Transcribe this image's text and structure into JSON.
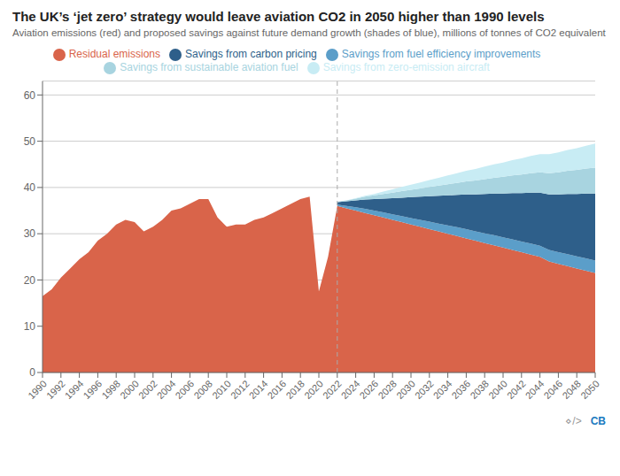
{
  "chart_data": {
    "type": "area",
    "title": "The UK’s ‘jet zero’ strategy would leave aviation CO2 in 2050 higher than 1990 levels",
    "subtitle": "Aviation emissions (red) and proposed savings against future demand growth (shades of blue), millions of tonnes of CO2 equivalent",
    "x": [
      1990,
      1991,
      1992,
      1993,
      1994,
      1995,
      1996,
      1997,
      1998,
      1999,
      2000,
      2001,
      2002,
      2003,
      2004,
      2005,
      2006,
      2007,
      2008,
      2009,
      2010,
      2011,
      2012,
      2013,
      2014,
      2015,
      2016,
      2017,
      2018,
      2019,
      2020,
      2021,
      2022,
      2023,
      2024,
      2025,
      2026,
      2027,
      2028,
      2029,
      2030,
      2031,
      2032,
      2033,
      2034,
      2035,
      2036,
      2037,
      2038,
      2039,
      2040,
      2041,
      2042,
      2043,
      2044,
      2045,
      2046,
      2047,
      2048,
      2049,
      2050
    ],
    "series": [
      {
        "name": "Residual emissions",
        "color": "#d9644a",
        "values": [
          16.5,
          18.0,
          20.5,
          22.5,
          24.5,
          26.0,
          28.5,
          30.0,
          32.0,
          33.0,
          32.5,
          30.5,
          31.5,
          33.0,
          35.0,
          35.5,
          36.5,
          37.5,
          37.5,
          33.5,
          31.5,
          32.0,
          32.0,
          33.0,
          33.5,
          34.5,
          35.5,
          36.5,
          37.5,
          38.0,
          17.5,
          25.0,
          36.0,
          35.5,
          35.0,
          34.5,
          34.0,
          33.5,
          33.0,
          32.5,
          32.0,
          31.5,
          31.0,
          30.5,
          30.0,
          29.5,
          29.0,
          28.5,
          28.0,
          27.5,
          27.0,
          26.5,
          26.0,
          25.5,
          25.0,
          24.0,
          23.5,
          23.0,
          22.5,
          22.0,
          21.5
        ]
      },
      {
        "name": "Savings from fuel efficiency improvements",
        "color": "#5b9ec9",
        "values": [
          null,
          null,
          null,
          null,
          null,
          null,
          null,
          null,
          null,
          null,
          null,
          null,
          null,
          null,
          null,
          null,
          null,
          null,
          null,
          null,
          null,
          null,
          null,
          null,
          null,
          null,
          null,
          null,
          null,
          null,
          null,
          null,
          0.3,
          0.5,
          0.7,
          0.9,
          1.0,
          1.1,
          1.2,
          1.3,
          1.4,
          1.5,
          1.6,
          1.7,
          1.8,
          1.9,
          2.0,
          2.0,
          2.1,
          2.2,
          2.2,
          2.3,
          2.3,
          2.4,
          2.4,
          2.5,
          2.5,
          2.6,
          2.6,
          2.7,
          2.7
        ]
      },
      {
        "name": "Savings from carbon pricing",
        "color": "#2e5f8a",
        "values": [
          null,
          null,
          null,
          null,
          null,
          null,
          null,
          null,
          null,
          null,
          null,
          null,
          null,
          null,
          null,
          null,
          null,
          null,
          null,
          null,
          null,
          null,
          null,
          null,
          null,
          null,
          null,
          null,
          null,
          null,
          null,
          null,
          0.5,
          1.0,
          1.5,
          2.0,
          2.5,
          3.0,
          3.5,
          4.0,
          4.5,
          5.0,
          5.5,
          6.0,
          6.5,
          7.0,
          7.5,
          8.0,
          8.5,
          9.0,
          9.5,
          10.0,
          10.5,
          11.0,
          11.5,
          12.0,
          12.5,
          13.0,
          13.5,
          14.0,
          14.5
        ]
      },
      {
        "name": "Savings from sustainable aviation fuel",
        "color": "#a8d4e0",
        "values": [
          null,
          null,
          null,
          null,
          null,
          null,
          null,
          null,
          null,
          null,
          null,
          null,
          null,
          null,
          null,
          null,
          null,
          null,
          null,
          null,
          null,
          null,
          null,
          null,
          null,
          null,
          null,
          null,
          null,
          null,
          null,
          null,
          0.1,
          0.2,
          0.4,
          0.6,
          0.8,
          1.0,
          1.2,
          1.4,
          1.6,
          1.8,
          2.0,
          2.2,
          2.4,
          2.6,
          2.8,
          3.0,
          3.2,
          3.4,
          3.6,
          3.8,
          4.0,
          4.2,
          4.4,
          4.6,
          4.8,
          5.0,
          5.2,
          5.4,
          5.6
        ]
      },
      {
        "name": "Savings from zero-emission aircraft",
        "color": "#c8ecf4",
        "values": [
          null,
          null,
          null,
          null,
          null,
          null,
          null,
          null,
          null,
          null,
          null,
          null,
          null,
          null,
          null,
          null,
          null,
          null,
          null,
          null,
          null,
          null,
          null,
          null,
          null,
          null,
          null,
          null,
          null,
          null,
          null,
          null,
          0.0,
          0.0,
          0.1,
          0.2,
          0.3,
          0.5,
          0.7,
          0.9,
          1.1,
          1.3,
          1.5,
          1.7,
          1.9,
          2.1,
          2.3,
          2.5,
          2.7,
          2.9,
          3.1,
          3.3,
          3.5,
          3.7,
          3.9,
          4.1,
          4.3,
          4.5,
          4.7,
          4.9,
          5.2
        ]
      }
    ],
    "stacked": true,
    "xlim": [
      1990,
      2050
    ],
    "xticks": [
      1990,
      1992,
      1994,
      1996,
      1998,
      2000,
      2002,
      2004,
      2006,
      2008,
      2010,
      2012,
      2014,
      2016,
      2018,
      2020,
      2022,
      2024,
      2026,
      2028,
      2030,
      2032,
      2034,
      2036,
      2038,
      2040,
      2042,
      2044,
      2046,
      2048,
      2050
    ],
    "ylim": [
      0,
      63
    ],
    "yticks": [
      0,
      10,
      20,
      30,
      40,
      50,
      60
    ],
    "grid": true,
    "legend": "top",
    "annotations": [
      {
        "type": "vline",
        "x": 2022,
        "line_style": "dashed",
        "color": "#aaaaaa"
      },
      {
        "text": "⋄/>",
        "color": "#999999"
      },
      {
        "text": "CB",
        "color": "#1a7abf"
      }
    ]
  }
}
